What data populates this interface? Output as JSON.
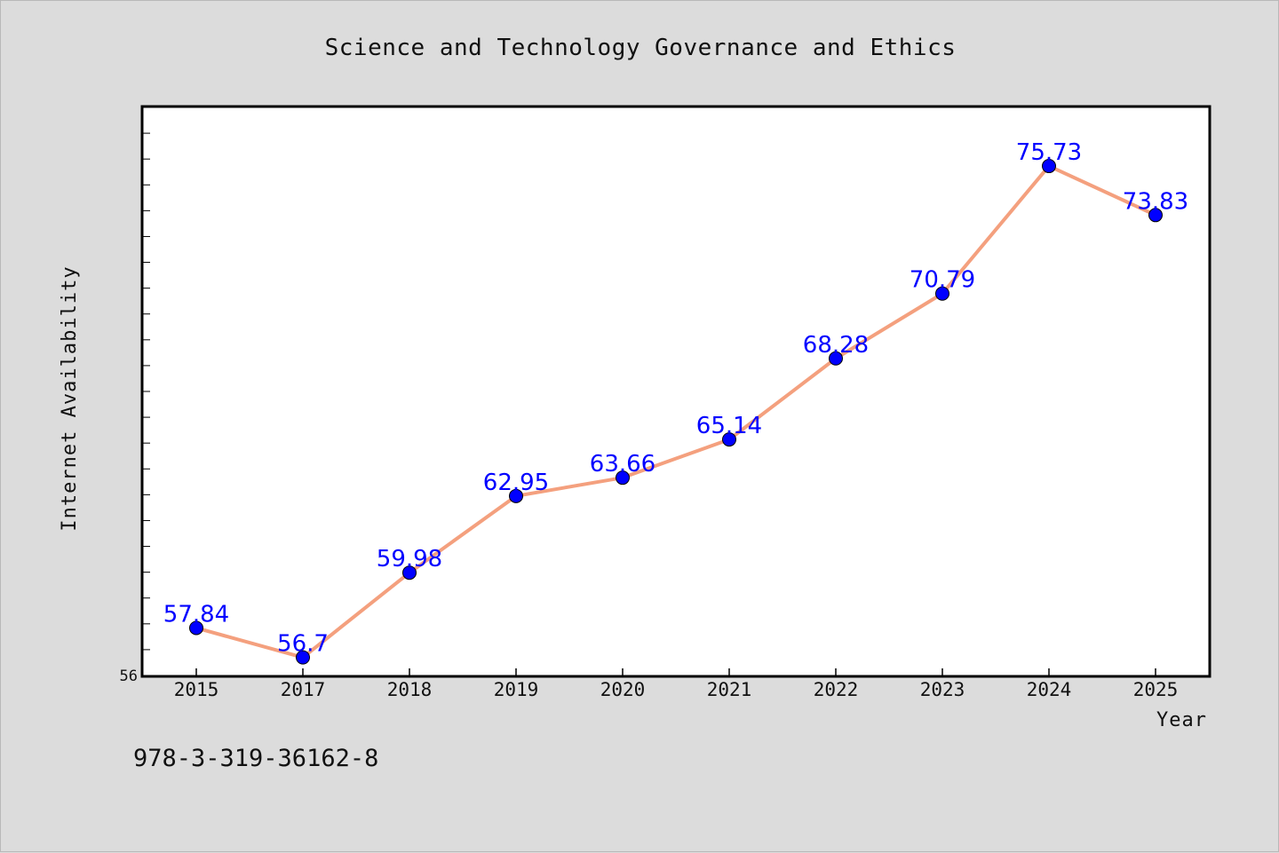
{
  "chart_data": {
    "type": "line",
    "title": "Science and Technology Governance and Ethics",
    "xlabel": "Year",
    "ylabel": "Internet Availability",
    "categories": [
      "2015",
      "2017",
      "2018",
      "2019",
      "2020",
      "2021",
      "2022",
      "2023",
      "2024",
      "2025"
    ],
    "series": [
      {
        "values": [
          57.84,
          56.7,
          59.98,
          62.95,
          63.66,
          65.14,
          68.28,
          70.79,
          75.73,
          73.83
        ],
        "labels": [
          "57.84",
          "56.7",
          "59.98",
          "62.95",
          "63.66",
          "65.14",
          "68.28",
          "70.79",
          "75.73",
          "73.83"
        ],
        "line_color": "#f4a07e",
        "marker_color": "#0000ff",
        "label_color": "#0000ff"
      }
    ],
    "ylim": [
      56,
      78
    ],
    "y_tick_labels": [
      "56"
    ],
    "y_minor_tick_step": 1,
    "grid": false,
    "legend": "none",
    "background": "#dcdcdc",
    "plot_background": "#ffffff"
  },
  "footer": {
    "isbn": "978-3-319-36162-8"
  }
}
